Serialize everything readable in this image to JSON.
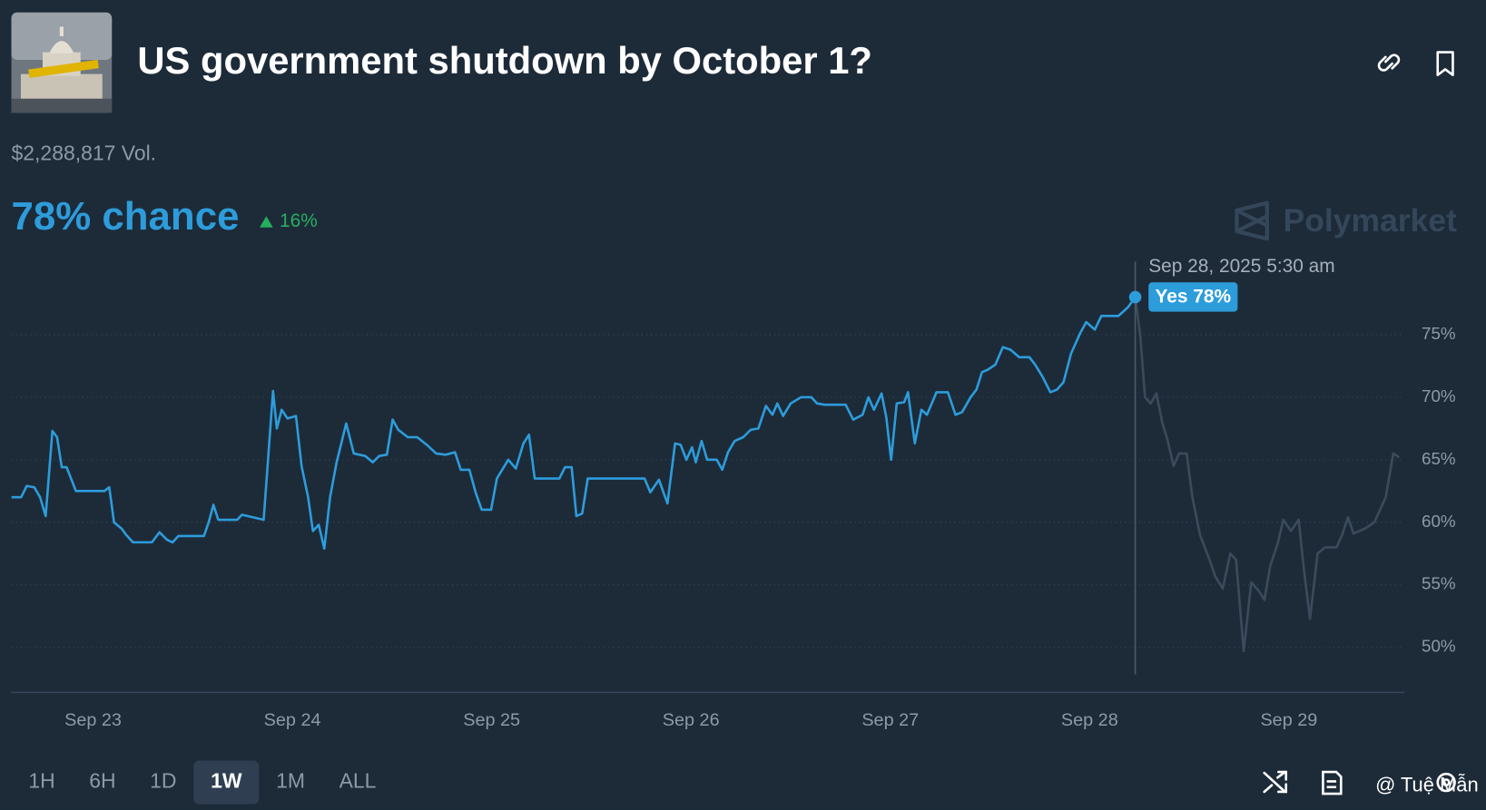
{
  "header": {
    "title": "US government shutdown by October 1?",
    "volume": "$2,288,817 Vol.",
    "chance": "78% chance",
    "change": "16%"
  },
  "watermark": "Polymarket",
  "controls": {
    "ranges": [
      "1H",
      "6H",
      "1D",
      "1W",
      "1M",
      "ALL"
    ],
    "active": "1W"
  },
  "credit": "@ Tuệ Mẫn",
  "chart_data": {
    "type": "line",
    "xlim": [
      22.59,
      29.58
    ],
    "xticks": [
      {
        "value": 23,
        "label": "Sep 23"
      },
      {
        "value": 24,
        "label": "Sep 24"
      },
      {
        "value": 25,
        "label": "Sep 25"
      },
      {
        "value": 26,
        "label": "Sep 26"
      },
      {
        "value": 27,
        "label": "Sep 27"
      },
      {
        "value": 28,
        "label": "Sep 28"
      },
      {
        "value": 29,
        "label": "Sep 29"
      }
    ],
    "ylim": [
      46.4,
      81.3
    ],
    "yticks": [
      {
        "value": 50,
        "label": "50%"
      },
      {
        "value": 55,
        "label": "55%"
      },
      {
        "value": 60,
        "label": "60%"
      },
      {
        "value": 65,
        "label": "65%"
      },
      {
        "value": 70,
        "label": "70%"
      },
      {
        "value": 75,
        "label": "75%"
      }
    ],
    "grid": true,
    "x": [
      22.591,
      22.639,
      22.667,
      22.705,
      22.734,
      22.762,
      22.796,
      22.819,
      22.843,
      22.867,
      22.914,
      23.057,
      23.081,
      23.105,
      23.143,
      23.166,
      23.2,
      23.295,
      23.333,
      23.371,
      23.399,
      23.428,
      23.556,
      23.58,
      23.604,
      23.628,
      23.723,
      23.747,
      23.856,
      23.903,
      23.922,
      23.946,
      23.975,
      24.018,
      24.046,
      24.079,
      24.103,
      24.132,
      24.16,
      24.189,
      24.222,
      24.27,
      24.308,
      24.365,
      24.403,
      24.436,
      24.474,
      24.503,
      24.531,
      24.579,
      24.626,
      24.674,
      24.721,
      24.769,
      24.816,
      24.845,
      24.888,
      24.921,
      24.95,
      24.997,
      25.026,
      25.083,
      25.121,
      25.159,
      25.187,
      25.216,
      25.34,
      25.368,
      25.401,
      25.425,
      25.454,
      25.482,
      25.767,
      25.796,
      25.839,
      25.882,
      25.92,
      25.948,
      25.977,
      26.005,
      26.024,
      26.053,
      26.081,
      26.129,
      26.157,
      26.186,
      26.219,
      26.262,
      26.3,
      26.338,
      26.376,
      26.409,
      26.433,
      26.462,
      26.5,
      26.552,
      26.604,
      26.633,
      26.671,
      26.776,
      26.814,
      26.861,
      26.89,
      26.918,
      26.956,
      26.98,
      27.004,
      27.032,
      27.07,
      27.089,
      27.123,
      27.156,
      27.184,
      27.232,
      27.289,
      27.327,
      27.36,
      27.403,
      27.432,
      27.46,
      27.489,
      27.527,
      27.565,
      27.603,
      27.646,
      27.698,
      27.727,
      27.765,
      27.803,
      27.836,
      27.869,
      27.907,
      27.955,
      27.983,
      28.026,
      28.059,
      28.145,
      28.193,
      28.229,
      28.254,
      28.278,
      28.307,
      28.335,
      28.364,
      28.392,
      28.421,
      28.449,
      28.487,
      28.516,
      28.554,
      28.602,
      28.63,
      28.668,
      28.706,
      28.735,
      28.773,
      28.811,
      28.849,
      28.877,
      28.906,
      28.944,
      28.972,
      29.01,
      29.049,
      29.077,
      29.106,
      29.144,
      29.182,
      29.239,
      29.267,
      29.296,
      29.324,
      29.381,
      29.429,
      29.486,
      29.524,
      29.553
    ],
    "series": [
      {
        "name": "Yes",
        "color": "#2d9cdb",
        "values": [
          62.0,
          62.0,
          62.9,
          62.8,
          62.0,
          60.5,
          67.3,
          66.8,
          64.4,
          64.4,
          62.5,
          62.5,
          62.8,
          60.0,
          59.5,
          59.0,
          58.4,
          58.4,
          59.2,
          58.6,
          58.4,
          58.9,
          58.9,
          60.0,
          61.4,
          60.2,
          60.2,
          60.6,
          60.2,
          70.5,
          67.5,
          69.0,
          68.3,
          68.5,
          64.5,
          62.0,
          59.3,
          59.8,
          57.9,
          62.0,
          64.8,
          67.9,
          65.5,
          65.3,
          64.8,
          65.3,
          65.4,
          68.2,
          67.4,
          66.8,
          66.8,
          66.2,
          65.5,
          65.4,
          65.6,
          64.2,
          64.2,
          62.3,
          61.0,
          61.0,
          63.5,
          65.0,
          64.3,
          66.3,
          67.0,
          63.5,
          63.5,
          64.4,
          64.4,
          60.5,
          60.7,
          63.5,
          63.5,
          62.4,
          63.4,
          61.5,
          66.3,
          66.2,
          65.0,
          66.0,
          64.8,
          66.5,
          65.0,
          65.0,
          64.2,
          65.6,
          66.5,
          66.8,
          67.4,
          67.5,
          69.3,
          68.6,
          69.5,
          68.5,
          69.5,
          70.0,
          70.0,
          69.5,
          69.4,
          69.4,
          68.2,
          68.6,
          70.0,
          69.0,
          70.3,
          68.4,
          65.0,
          69.5,
          69.6,
          70.4,
          66.3,
          69.0,
          68.6,
          70.4,
          70.4,
          68.6,
          68.8,
          70.0,
          70.6,
          72.0,
          72.2,
          72.6,
          74.0,
          73.8,
          73.2,
          73.2,
          72.6,
          71.6,
          70.4,
          70.6,
          71.2,
          73.5,
          75.2,
          76.0,
          75.4,
          76.5,
          76.5,
          77.2,
          78.0,
          75.0,
          70.0,
          69.5,
          70.3,
          68.0,
          66.5,
          64.5,
          65.5,
          65.5,
          62.0,
          59.0,
          57.0,
          55.7,
          54.7,
          57.5,
          57.0,
          49.7,
          55.2,
          54.5,
          53.8,
          56.5,
          58.3,
          60.2,
          59.3,
          60.2,
          56.0,
          52.3,
          57.5,
          58.0,
          58.0,
          59.0,
          60.4,
          59.1,
          59.5,
          60.0,
          62.0,
          65.5,
          65.2
        ]
      }
    ],
    "tooltip": {
      "date": "Sep 28, 2025 5:30 am",
      "label": "Yes 78%",
      "x": 28.229,
      "value": 78
    }
  }
}
